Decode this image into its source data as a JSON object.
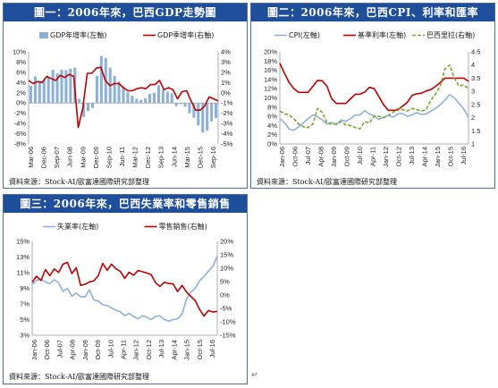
{
  "panels": [
    {
      "title": "圖一：2006年來，巴西GDP走勢圖",
      "source": "資料來源：Stock-AI/歐富達國際研究部整理"
    },
    {
      "title": "圖二：2006年來，巴西CPI、利率和匯率",
      "source": "資料來源：Stock-AI/歐富達國際研究部整理"
    },
    {
      "title": "圖三：2006年來，巴西失業率和零售銷售",
      "source": "資料來源：Stock-AI/歐富達國際研究部整理"
    }
  ],
  "return_mark": "↵",
  "chart_data": [
    {
      "type": "bar",
      "title": "圖一：2006年來，巴西GDP走勢圖",
      "legend": "top-center",
      "grid": false,
      "categories": [
        "Mar-06",
        "Jun-06",
        "Sep-06",
        "Dec-06",
        "Mar-07",
        "Jun-07",
        "Sep-07",
        "Dec-07",
        "Mar-08",
        "Jun-08",
        "Sep-08",
        "Dec-08",
        "Mar-09",
        "Jun-09",
        "Sep-09",
        "Dec-09",
        "Mar-10",
        "Jun-10",
        "Sep-10",
        "Dec-10",
        "Mar-11",
        "Jun-11",
        "Sep-11",
        "Dec-11",
        "Mar-12",
        "Jun-12",
        "Sep-12",
        "Dec-12",
        "Mar-13",
        "Jun-13",
        "Sep-13",
        "Dec-13",
        "Mar-14",
        "Jun-14",
        "Sep-14",
        "Dec-14",
        "Mar-15",
        "Jun-15",
        "Sep-15",
        "Dec-15",
        "Mar-16",
        "Jun-16",
        "Sep-16"
      ],
      "x_tick_labels": [
        "Mar-06",
        "Dec-06",
        "Sep-07",
        "Jun-08",
        "Mar-09",
        "Dec-09",
        "Sep-10",
        "Jun-11",
        "Mar-12",
        "Dec-12",
        "Sep-13",
        "Jun-14",
        "Mar-15",
        "Dec-15",
        "Sep-16"
      ],
      "ylim_left": [
        -8,
        10
      ],
      "ylim_right": [
        -5,
        4
      ],
      "y_ticks_left": [
        "10%",
        "8%",
        "6%",
        "4%",
        "2%",
        "0%",
        "-2%",
        "-4%",
        "-6%",
        "-8%"
      ],
      "y_ticks_right": [
        "4%",
        "3%",
        "2%",
        "1%",
        "0%",
        "-1%",
        "-2%",
        "-3%",
        "-4%",
        "-5%"
      ],
      "series": [
        {
          "name": "GDP年增率(左軸)",
          "kind": "bar",
          "axis": "left",
          "color": "#8db0d8",
          "values": [
            3.4,
            5.2,
            4.3,
            4.6,
            5.1,
            6.5,
            5.8,
            6.5,
            6.4,
            6.7,
            6.9,
            0.8,
            -2.7,
            -1.6,
            -1.0,
            5.3,
            9.2,
            8.8,
            6.9,
            5.3,
            4.2,
            3.3,
            2.1,
            1.4,
            0.8,
            0.6,
            0.9,
            1.8,
            2.0,
            3.5,
            2.6,
            2.2,
            1.9,
            -0.6,
            -0.2,
            -0.7,
            -2.0,
            -2.9,
            -4.4,
            -5.8,
            -5.4,
            -3.6,
            -2.9
          ]
        },
        {
          "name": "GDP季增率(右軸)",
          "kind": "line",
          "axis": "right",
          "color": "#c00000",
          "values": [
            1.2,
            0.9,
            1.1,
            1.0,
            1.6,
            1.4,
            1.2,
            1.7,
            1.5,
            1.8,
            1.6,
            -3.4,
            -1.5,
            1.9,
            1.9,
            2.4,
            2.5,
            1.2,
            0.7,
            0.9,
            0.9,
            0.5,
            0.2,
            0.2,
            0.4,
            0.5,
            0.4,
            0.8,
            0.8,
            1.2,
            0.3,
            0.5,
            0.3,
            -0.6,
            0.1,
            0.2,
            -0.8,
            -1.7,
            -1.7,
            -1.3,
            -0.4,
            -0.6,
            -0.8
          ]
        }
      ]
    },
    {
      "type": "line",
      "title": "圖二：2006年來，巴西CPI、利率和匯率",
      "legend": "top-center",
      "grid": false,
      "x_tick_labels": [
        "Jan-06",
        "Oct-06",
        "Jul-07",
        "Apr-08",
        "Jan-09",
        "Oct-09",
        "Jul-10",
        "Apr-11",
        "Jan-12",
        "Oct-12",
        "Jul-13",
        "Apr-14",
        "Jan-15",
        "Oct-15",
        "Jul-16"
      ],
      "ylim_left": [
        0,
        20
      ],
      "ylim_right": [
        1,
        4.5
      ],
      "y_ticks_left": [
        "20%",
        "18%",
        "16%",
        "14%",
        "12%",
        "10%",
        "8%",
        "6%",
        "4%",
        "2%",
        "0%"
      ],
      "y_ticks_right": [
        "4.5",
        "4",
        "3.5",
        "3",
        "2.5",
        "2",
        "1.5",
        "1"
      ],
      "series": [
        {
          "name": "CPI(左軸)",
          "axis": "left",
          "color": "#8db0d8",
          "dash": "",
          "values": [
            5.5,
            4.6,
            3.2,
            3.0,
            3.7,
            4.6,
            5.5,
            6.3,
            5.9,
            5.2,
            4.3,
            4.7,
            4.2,
            5.2,
            4.9,
            5.5,
            6.3,
            6.3,
            7.2,
            6.5,
            6.1,
            5.3,
            5.8,
            6.2,
            5.8,
            6.5,
            6.6,
            6.0,
            6.3,
            6.8,
            6.4,
            6.5,
            7.1,
            7.7,
            8.5,
            9.5,
            10.7,
            10.0,
            8.8,
            7.6,
            5.8
          ]
        },
        {
          "name": "基準利率(左軸)",
          "axis": "left",
          "color": "#c00000",
          "dash": "",
          "values": [
            17.5,
            15.3,
            13.3,
            12.0,
            11.2,
            11.2,
            11.2,
            12.5,
            13.8,
            13.7,
            12.5,
            9.8,
            8.8,
            8.8,
            8.8,
            9.8,
            10.8,
            10.8,
            11.3,
            12.3,
            12.0,
            10.3,
            8.5,
            7.3,
            7.3,
            7.4,
            8.2,
            9.0,
            10.5,
            10.9,
            11.0,
            11.5,
            11.8,
            12.5,
            13.3,
            14.3,
            14.3,
            14.3,
            14.3,
            14.3,
            13.6
          ]
        },
        {
          "name": "巴西里拉(右軸)",
          "axis": "right",
          "color": "#76a730",
          "dash": "4,2",
          "values": [
            2.25,
            2.15,
            2.1,
            1.95,
            1.75,
            1.65,
            1.62,
            1.75,
            2.35,
            2.2,
            1.8,
            1.75,
            1.75,
            1.85,
            1.72,
            1.7,
            1.62,
            1.58,
            1.85,
            1.8,
            2.05,
            2.05,
            2.0,
            2.08,
            2.2,
            2.35,
            2.3,
            2.25,
            2.35,
            2.3,
            2.25,
            2.3,
            2.65,
            2.9,
            3.2,
            3.85,
            4.0,
            3.5,
            3.2,
            3.25,
            3.1
          ]
        }
      ]
    },
    {
      "type": "line",
      "title": "圖三：2006年來，巴西失業率和零售銷售",
      "legend": "top-center",
      "grid": false,
      "x_tick_labels": [
        "Jan-06",
        "Oct-06",
        "Jul-07",
        "Apr-08",
        "Jan-09",
        "Oct-09",
        "Jul-10",
        "Apr-11",
        "Jan-12",
        "Oct-12",
        "Jul-13",
        "Apr-14",
        "Jan-15",
        "Oct-15",
        "Jul-16"
      ],
      "ylim_left": [
        3,
        15
      ],
      "ylim_right": [
        -15,
        20
      ],
      "y_ticks_left": [
        "15%",
        "13%",
        "11%",
        "9%",
        "7%",
        "5%",
        "3%"
      ],
      "y_ticks_right": [
        "20%",
        "15%",
        "10%",
        "5%",
        "0%",
        "-5%",
        "-10%",
        "-15%"
      ],
      "series": [
        {
          "name": "失業率(左軸)",
          "axis": "left",
          "color": "#8db0d8",
          "dash": "",
          "values": [
            9.5,
            10.0,
            10.2,
            9.8,
            9.6,
            10.1,
            9.7,
            8.6,
            9.0,
            8.0,
            8.4,
            7.9,
            7.9,
            8.8,
            7.5,
            7.4,
            6.9,
            6.8,
            6.5,
            6.2,
            6.0,
            5.5,
            5.8,
            5.4,
            5.1,
            5.5,
            5.3,
            5.0,
            5.4,
            5.5,
            5.0,
            4.8,
            5.0,
            5.1,
            5.7,
            7.6,
            8.5,
            9.0,
            10.0,
            10.5,
            11.2,
            11.8,
            13.1
          ]
        },
        {
          "name": "零售銷售(右軸)",
          "axis": "right",
          "color": "#c00000",
          "dash": "",
          "values": [
            4.8,
            7.0,
            5.4,
            9.5,
            7.2,
            9.7,
            8.4,
            11.5,
            12.2,
            8.0,
            10.2,
            3.6,
            4.0,
            4.9,
            5.3,
            7.2,
            11.8,
            9.2,
            11.5,
            9.8,
            8.8,
            6.2,
            8.5,
            7.4,
            9.1,
            8.7,
            8.2,
            7.6,
            4.6,
            3.2,
            4.8,
            4.3,
            4.1,
            1.3,
            3.6,
            1.2,
            -0.5,
            -2.1,
            -5.4,
            -7.8,
            -5.8,
            -6.3,
            -6.1
          ]
        }
      ]
    }
  ]
}
